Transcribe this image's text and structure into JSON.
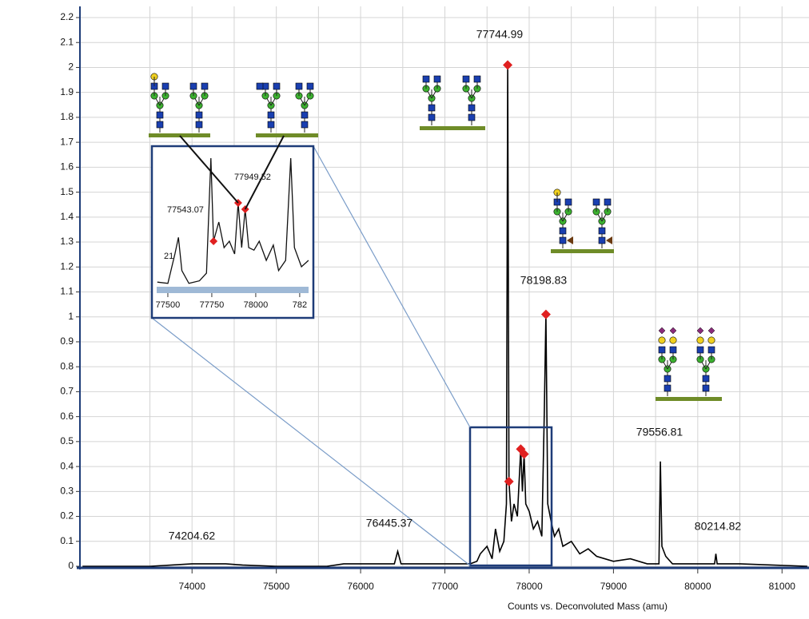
{
  "chart_data": {
    "type": "line",
    "x_label": "Counts vs. Deconvoluted Mass (amu)",
    "xlim": [
      72670,
      81320
    ],
    "ylim": [
      0,
      2.2
    ],
    "xticks": [
      74000,
      75000,
      76000,
      77000,
      78000,
      79000,
      80000,
      81000
    ],
    "yticks": [
      0,
      0.1,
      0.2,
      0.3,
      0.4,
      0.5,
      0.6,
      0.7,
      0.8,
      0.9,
      1,
      1.1,
      1.2,
      1.3,
      1.4,
      1.5,
      1.6,
      1.7,
      1.8,
      1.9,
      2,
      2.1,
      2.2
    ],
    "grid": true,
    "spectrum": {
      "color": "#000000",
      "x": [
        72700,
        73500,
        74000,
        74200,
        74400,
        74600,
        75000,
        75600,
        75800,
        76000,
        76400,
        76440,
        76480,
        76800,
        77300,
        77380,
        77420,
        77500,
        77560,
        77600,
        77650,
        77700,
        77730,
        77745,
        77760,
        77790,
        77820,
        77860,
        77900,
        77920,
        77940,
        77960,
        78000,
        78050,
        78100,
        78150,
        78180,
        78199,
        78220,
        78260,
        78300,
        78350,
        78400,
        78500,
        78600,
        78700,
        78800,
        79000,
        79200,
        79400,
        79540,
        79557,
        79575,
        79620,
        79700,
        80000,
        80200,
        80215,
        80230,
        80500,
        81300
      ],
      "y": [
        0,
        0,
        0.01,
        0.01,
        0.01,
        0.005,
        0,
        0,
        0.01,
        0.01,
        0.01,
        0.06,
        0.01,
        0.01,
        0.01,
        0.02,
        0.05,
        0.08,
        0.03,
        0.15,
        0.06,
        0.1,
        0.25,
        2.01,
        0.34,
        0.18,
        0.25,
        0.2,
        0.47,
        0.3,
        0.45,
        0.25,
        0.22,
        0.15,
        0.18,
        0.12,
        0.62,
        1.01,
        0.25,
        0.18,
        0.12,
        0.15,
        0.08,
        0.1,
        0.05,
        0.07,
        0.04,
        0.02,
        0.03,
        0.01,
        0.01,
        0.42,
        0.08,
        0.04,
        0.01,
        0.01,
        0.01,
        0.05,
        0.01,
        0.01,
        0
      ]
    },
    "markers": {
      "color": "#e02020",
      "x": [
        77745,
        77760,
        77900,
        77940,
        78199
      ],
      "y": [
        2.01,
        0.34,
        0.47,
        0.45,
        1.01
      ]
    },
    "peak_labels": [
      "77744.99",
      "78198.83",
      "79556.81",
      "80214.82",
      "76445.37",
      "74204.62"
    ],
    "inset": {
      "xlim": [
        77432,
        78305
      ],
      "ylim": [
        0,
        1.05
      ],
      "xticks": [
        77500,
        77750,
        78000,
        {
          "value": 78250,
          "label": "782"
        }
      ],
      "labels": [
        "77543.07",
        "77949.52",
        "21"
      ],
      "x": [
        77440,
        77500,
        77540,
        77560,
        77580,
        77620,
        77680,
        77720,
        77745,
        77760,
        77790,
        77820,
        77850,
        77880,
        77900,
        77920,
        77940,
        77960,
        77990,
        78020,
        78060,
        78100,
        78130,
        78170,
        78199,
        78220,
        78260,
        78300
      ],
      "y": [
        0.03,
        0.02,
        0.25,
        0.38,
        0.12,
        0.02,
        0.04,
        0.1,
        1.0,
        0.35,
        0.5,
        0.3,
        0.35,
        0.25,
        0.65,
        0.3,
        0.6,
        0.3,
        0.28,
        0.35,
        0.2,
        0.32,
        0.12,
        0.2,
        1.0,
        0.3,
        0.15,
        0.2
      ],
      "marker_x": [
        77760,
        77900,
        77940
      ],
      "marker_y": [
        0.35,
        0.65,
        0.6
      ]
    }
  }
}
